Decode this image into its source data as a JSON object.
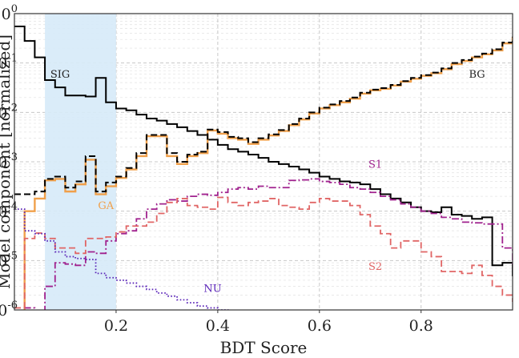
{
  "chart_data": {
    "type": "step",
    "xlabel": "BDT Score",
    "ylabel": "Model component [normalized]",
    "x_ticks": [
      "0.2",
      "0.4",
      "0.6",
      "0.8"
    ],
    "y_ticks": [
      {
        "base": "10",
        "exp": "0"
      },
      {
        "base": "10",
        "exp": "-1"
      },
      {
        "base": "10",
        "exp": "-2"
      },
      {
        "base": "10",
        "exp": "-3"
      },
      {
        "base": "10",
        "exp": "-4"
      },
      {
        "base": "10",
        "exp": "-5"
      },
      {
        "base": "10",
        "exp": "-6"
      }
    ],
    "xlim": [
      0.0,
      0.98
    ],
    "ylim_log10": [
      -6,
      0
    ],
    "yscale": "log",
    "grid": true,
    "shaded_region": {
      "x0": 0.06,
      "x1": 0.2,
      "color": "#d6eaf8"
    },
    "bin_width": 0.02,
    "x_start": 0.0,
    "series": [
      {
        "name": "SIG",
        "color": "#000000",
        "style": "solid",
        "width": 2,
        "values": [
          0.55,
          0.28,
          0.13,
          0.045,
          0.032,
          0.022,
          0.022,
          0.021,
          0.05,
          0.016,
          0.012,
          0.011,
          0.009,
          0.0075,
          0.0068,
          0.0058,
          0.005,
          0.0042,
          0.0035,
          0.0028,
          0.0022,
          0.0018,
          0.0016,
          0.0014,
          0.0012,
          0.001,
          0.0009,
          0.0008,
          0.0007,
          0.0006,
          0.0005,
          0.00045,
          0.0004,
          0.00038,
          0.00035,
          0.00028,
          0.00022,
          0.00018,
          0.00015,
          0.00012,
          0.0001,
          9.5e-05,
          0.00012,
          8.5e-05,
          8e-05,
          7e-05,
          7.5e-05,
          8e-06,
          9e-06,
          5e-06,
          2.5e-06,
          1.5e-06
        ]
      },
      {
        "name": "GA",
        "color": "#f0a04b",
        "style": "solid",
        "width": 2.4,
        "values": [
          0.0,
          0.0001,
          0.00018,
          0.00042,
          0.00045,
          0.00025,
          0.00035,
          0.0011,
          0.00022,
          0.00032,
          0.00047,
          0.0007,
          0.0013,
          0.0033,
          0.0033,
          0.0013,
          0.0009,
          0.0013,
          0.0015,
          0.0043,
          0.0037,
          0.003,
          0.0028,
          0.0023,
          0.0028,
          0.0034,
          0.0042,
          0.0055,
          0.0072,
          0.0095,
          0.012,
          0.014,
          0.016,
          0.019,
          0.024,
          0.028,
          0.03,
          0.035,
          0.042,
          0.048,
          0.055,
          0.062,
          0.075,
          0.095,
          0.11,
          0.13,
          0.15,
          0.18,
          0.25,
          0.32,
          0.2,
          0.2
        ]
      },
      {
        "name": "BG",
        "color": "#000000",
        "style": "dashed",
        "width": 2,
        "values": [
          0.00022,
          0.00022,
          0.00025,
          0.00045,
          0.0005,
          0.0003,
          0.0004,
          0.0013,
          0.00025,
          0.00038,
          0.0005,
          0.00075,
          0.0015,
          0.0035,
          0.0035,
          0.0015,
          0.001,
          0.0014,
          0.0016,
          0.0045,
          0.004,
          0.0032,
          0.003,
          0.0025,
          0.003,
          0.0036,
          0.0044,
          0.0058,
          0.0075,
          0.01,
          0.0125,
          0.0145,
          0.017,
          0.02,
          0.025,
          0.029,
          0.031,
          0.036,
          0.043,
          0.05,
          0.057,
          0.064,
          0.078,
          0.1,
          0.115,
          0.135,
          0.155,
          0.19,
          0.26,
          0.33,
          0.2,
          0.2
        ]
      },
      {
        "name": "S1",
        "color": "#a0228e",
        "style": "dashdot",
        "width": 1.8,
        "values": [
          9e-07,
          1.1e-06,
          8.5e-07,
          3e-06,
          9e-06,
          8.5e-06,
          8e-06,
          1.5e-05,
          1.4e-05,
          2.5e-05,
          3.5e-05,
          4e-05,
          7e-05,
          0.00011,
          0.00014,
          0.00017,
          0.00016,
          0.0002,
          0.00022,
          0.00021,
          0.00024,
          0.00028,
          0.0003,
          0.00028,
          0.00032,
          0.0003,
          0.0003,
          0.00042,
          0.00043,
          0.00045,
          0.0004,
          0.00038,
          0.00035,
          0.0003,
          0.00028,
          0.00024,
          0.0002,
          0.00017,
          0.00014,
          0.00012,
          0.0001,
          9e-05,
          7.5e-05,
          7e-05,
          6e-05,
          5.8e-05,
          5.5e-05,
          5.5e-05,
          1.8e-05,
          8e-06,
          4e-06,
          1.5e-06
        ]
      },
      {
        "name": "S2",
        "color": "#e06565",
        "style": "dashed",
        "width": 1.8,
        "values": [
          1.1e-06,
          2.8e-05,
          3.6e-05,
          2.8e-05,
          1.8e-05,
          1.8e-05,
          1.4e-05,
          2.8e-05,
          2.8e-05,
          3e-05,
          3.8e-05,
          5e-05,
          5e-05,
          6e-05,
          9e-05,
          0.00015,
          0.00018,
          0.00013,
          0.00012,
          0.00011,
          0.00019,
          0.00015,
          0.00013,
          0.00015,
          0.00016,
          0.00018,
          0.00013,
          0.00012,
          0.00011,
          0.00015,
          0.00018,
          0.00016,
          0.00016,
          0.00013,
          8.5e-05,
          5e-05,
          3.5e-05,
          1.8e-05,
          2.5e-05,
          2.5e-05,
          1.5e-05,
          1.2e-05,
          6e-06,
          6e-06,
          5.5e-06,
          8e-06,
          5e-06,
          3e-06,
          2e-06,
          1.5e-06,
          1.5e-06,
          1.5e-06
        ]
      },
      {
        "name": "NU",
        "color": "#5a24b8",
        "style": "dotted",
        "width": 1.8,
        "values": [
          0.00011,
          4e-05,
          3.5e-05,
          2.5e-05,
          1.5e-05,
          1.2e-05,
          1.1e-05,
          1.05e-05,
          5.5e-06,
          4.5e-06,
          4e-06,
          3.5e-06,
          3e-06,
          2.6e-06,
          2.2e-06,
          1.9e-06,
          1.6e-06,
          1.4e-06,
          1.2e-06,
          1.1e-06,
          1e-06,
          9e-07,
          8e-07,
          7e-07,
          6e-07,
          5e-07,
          4e-07,
          3e-07,
          2e-07,
          2e-07,
          2e-07,
          2e-07,
          2e-07,
          2e-07,
          2e-07,
          2e-07,
          2e-07,
          2e-07,
          2e-07,
          2e-07,
          2e-07,
          2e-07,
          2e-07,
          2e-07,
          2e-07,
          2e-07,
          2e-07,
          2e-07,
          2e-07,
          2e-07,
          2e-07,
          2e-07
        ]
      }
    ],
    "annotations": [
      {
        "text": "SIG",
        "series": "SIG",
        "x": 0.09,
        "y": 0.05
      },
      {
        "text": "BG",
        "series": "BG",
        "x": 0.91,
        "y": 0.05
      },
      {
        "text": "GA",
        "series": "GA",
        "x": 0.18,
        "y": 0.00011
      },
      {
        "text": "S1",
        "series": "S1",
        "x": 0.71,
        "y": 0.00075
      },
      {
        "text": "S2",
        "series": "S2",
        "x": 0.71,
        "y": 6.5e-06
      },
      {
        "text": "NU",
        "series": "NU",
        "x": 0.39,
        "y": 2.3e-06
      }
    ]
  }
}
